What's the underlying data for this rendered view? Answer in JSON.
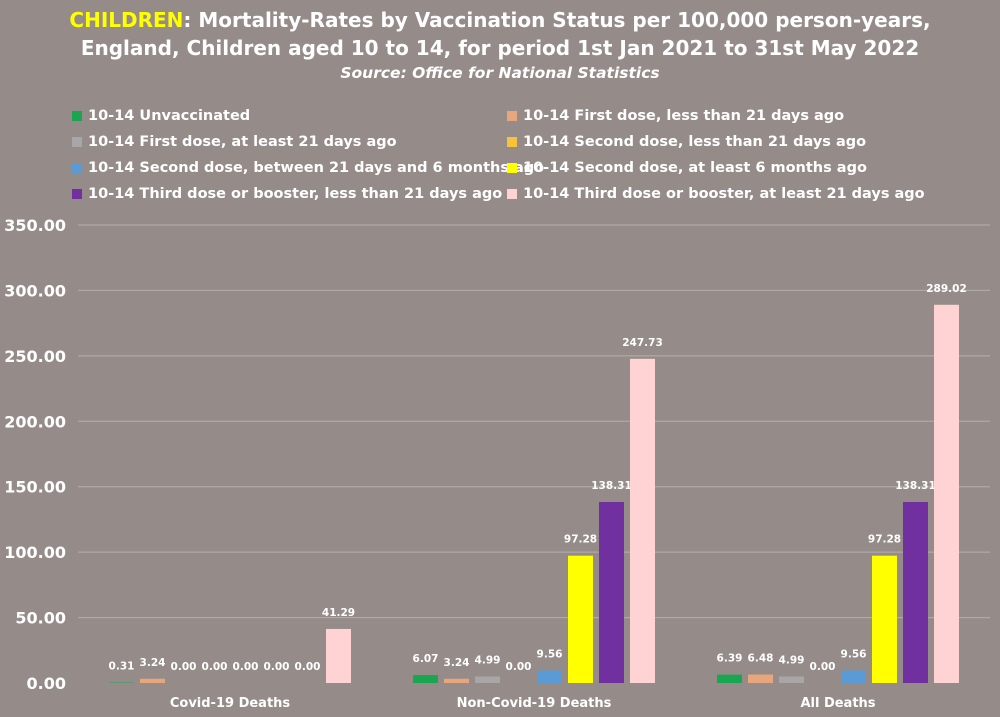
{
  "title": {
    "highlight": "CHILDREN",
    "rest_line1": ": Mortality-Rates by Vaccination Status per 100,000 person-years,",
    "line2": "England, Children aged 10 to 14, for period 1st Jan 2021 to 31st May 2022",
    "source": "Source: Office for National Statistics"
  },
  "colors": {
    "background": "#958c8a",
    "title_highlight": "#ffff00",
    "gridline": "#b7aeac"
  },
  "chart_data": {
    "type": "bar",
    "categories": [
      "Covid-19 Deaths",
      "Non-Covid-19 Deaths",
      "All Deaths"
    ],
    "ylim": [
      0,
      350
    ],
    "yticks": [
      "0.00",
      "50.00",
      "100.00",
      "150.00",
      "200.00",
      "250.00",
      "300.00",
      "350.00"
    ],
    "grid": true,
    "legend_position": "top",
    "series": [
      {
        "name": "10-14 Unvaccinated",
        "color": "#1aa650",
        "values": [
          0.31,
          6.07,
          6.39
        ],
        "labels": [
          "0.31",
          "6.07",
          "6.39"
        ]
      },
      {
        "name": "10-14 First dose, less than 21 days ago",
        "color": "#e8a67c",
        "values": [
          3.24,
          3.24,
          6.48
        ],
        "labels": [
          "3.24",
          "3.24",
          "6.48"
        ]
      },
      {
        "name": "10-14 First dose, at least 21 days ago",
        "color": "#a8a6a6",
        "values": [
          0.0,
          4.99,
          4.99
        ],
        "labels": [
          "0.00",
          "4.99",
          "4.99"
        ]
      },
      {
        "name": "10-14 Second dose, less than 21 days ago",
        "color": "#f8c23c",
        "values": [
          0.0,
          0.0,
          0.0
        ],
        "labels": [
          "0.00",
          "0.00",
          "0.00"
        ]
      },
      {
        "name": "10-14 Second dose, between 21 days and 6 months ago",
        "color": "#5b9bd5",
        "values": [
          0.0,
          9.56,
          9.56
        ],
        "labels": [
          "0.00",
          "9.56",
          "9.56"
        ]
      },
      {
        "name": "10-14 Second dose, at least 6 months ago",
        "color": "#ffff00",
        "values": [
          0.0,
          97.28,
          97.28
        ],
        "labels": [
          "0.00",
          "97.28",
          "97.28"
        ]
      },
      {
        "name": "10-14 Third dose or booster, less than 21 days ago",
        "color": "#7030a0",
        "values": [
          0.0,
          138.31,
          138.31
        ],
        "labels": [
          "0.00",
          "138.31",
          "138.31"
        ]
      },
      {
        "name": "10-14 Third dose or booster, at least 21 days ago",
        "color": "#ffd3d3",
        "values": [
          41.29,
          247.73,
          289.02
        ],
        "labels": [
          "41.29",
          "247.73",
          "289.02"
        ]
      }
    ]
  }
}
